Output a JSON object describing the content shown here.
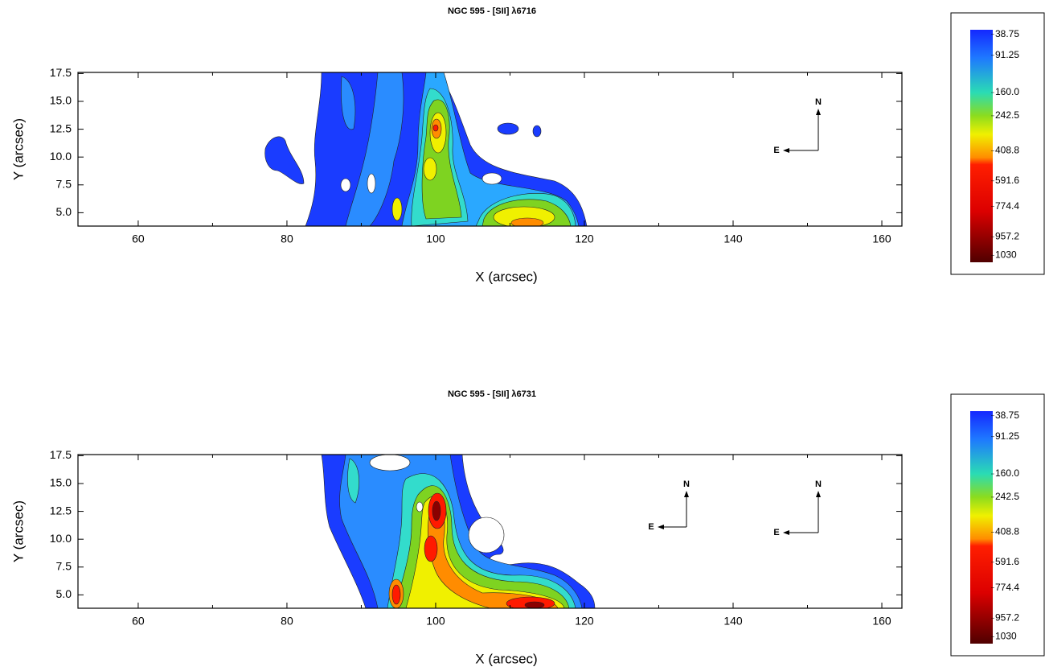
{
  "chart_data": [
    {
      "type": "contour",
      "title": "NGC 595 -  [SII] λ6716",
      "x_label": "X (arcsec)",
      "y_label": "Y (arcsec)",
      "xlim": [
        51.9,
        162.7
      ],
      "ylim": [
        3.8,
        17.6
      ],
      "xticks": [
        60,
        80,
        100,
        120,
        140,
        160
      ],
      "yticks": [
        {
          "value": 5,
          "label": "5.0"
        },
        7.5,
        {
          "value": 10,
          "label": "10.0"
        },
        12.5,
        {
          "value": 15,
          "label": "15.0"
        },
        17.5
      ],
      "colorbar_ticks": [
        38.75,
        91.25,
        {
          "value": 160,
          "label": "160.0"
        },
        242.5,
        408.8,
        591.6,
        774.4,
        957.2,
        1030
      ],
      "compass": [
        {
          "north": "N",
          "east": "E"
        }
      ]
    },
    {
      "type": "contour",
      "title": "NGC 595 -  [SII] λ6731",
      "x_label": "X (arcsec)",
      "y_label": "Y (arcsec)",
      "xlim": [
        51.9,
        162.7
      ],
      "ylim": [
        3.8,
        17.6
      ],
      "xticks": [
        60,
        80,
        100,
        120,
        140,
        160
      ],
      "yticks": [
        {
          "value": 5,
          "label": "5.0"
        },
        7.5,
        {
          "value": 10,
          "label": "10.0"
        },
        12.5,
        {
          "value": 15,
          "label": "15.0"
        },
        17.5
      ],
      "colorbar_ticks": [
        38.75,
        91.25,
        {
          "value": 160,
          "label": "160.0"
        },
        242.5,
        408.8,
        591.6,
        774.4,
        957.2,
        1030
      ],
      "compass": [
        {
          "north": "N",
          "east": "E"
        },
        {
          "north": "N",
          "east": "E"
        }
      ]
    }
  ]
}
